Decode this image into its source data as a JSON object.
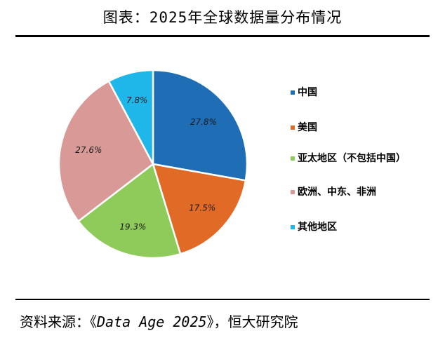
{
  "header": {
    "title": "图表：2025年全球数据量分布情况"
  },
  "footer": {
    "source_label": "资料来源：",
    "source_open": "《",
    "source_title": "Data Age 2025",
    "source_close": "》，",
    "source_org": "恒大研究院"
  },
  "chart_data": {
    "type": "pie",
    "categories": [
      "中国",
      "美国",
      "亚太地区（不包括中国）",
      "欧洲、中东、非洲",
      "其他地区"
    ],
    "values": [
      27.8,
      17.5,
      19.3,
      27.6,
      7.8
    ],
    "data_labels": [
      "27.8%",
      "17.5%",
      "19.3%",
      "27.6%",
      "7.8%"
    ],
    "colors": [
      "#1f6eb5",
      "#e06a26",
      "#8fcb5b",
      "#d99a97",
      "#1fb6ea"
    ],
    "legend_position": "right",
    "start_angle_deg": 0,
    "direction": "clockwise"
  }
}
